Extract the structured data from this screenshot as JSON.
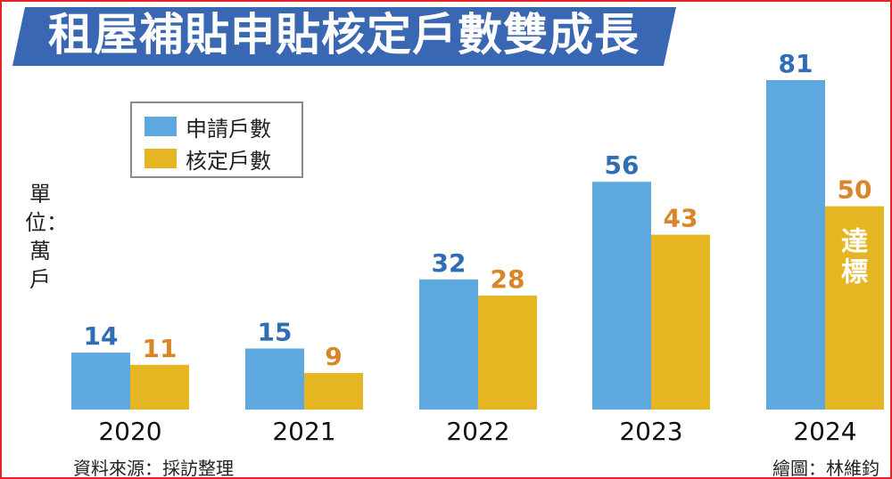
{
  "header": {
    "title": "租屋補貼申貼核定戶數雙成長"
  },
  "unit": "單位：萬戶",
  "footer": {
    "source": "資料來源：採訪整理",
    "credit": "繪圖：林維鈞"
  },
  "colors": {
    "banner": "#3a67b2",
    "applied": "#5ea8e0",
    "approved": "#e5b522",
    "applied_label": "#2f6db5",
    "approved_label": "#d9852a",
    "frame": "#e8232a"
  },
  "chart_data": {
    "type": "bar",
    "title": "租屋補貼申貼核定戶數雙成長",
    "xlabel": "",
    "ylabel": "單位：萬戶",
    "ylim": [
      0,
      85
    ],
    "grid": false,
    "legend": "top-left",
    "categories": [
      "2020",
      "2021",
      "2022",
      "2023",
      "2024"
    ],
    "series": [
      {
        "name": "申請戶數",
        "values": [
          14,
          15,
          32,
          56,
          81
        ]
      },
      {
        "name": "核定戶數",
        "values": [
          11,
          9,
          28,
          43,
          50
        ]
      }
    ],
    "annotations": [
      {
        "category": "2024",
        "series": "核定戶數",
        "text": "達標"
      }
    ]
  }
}
